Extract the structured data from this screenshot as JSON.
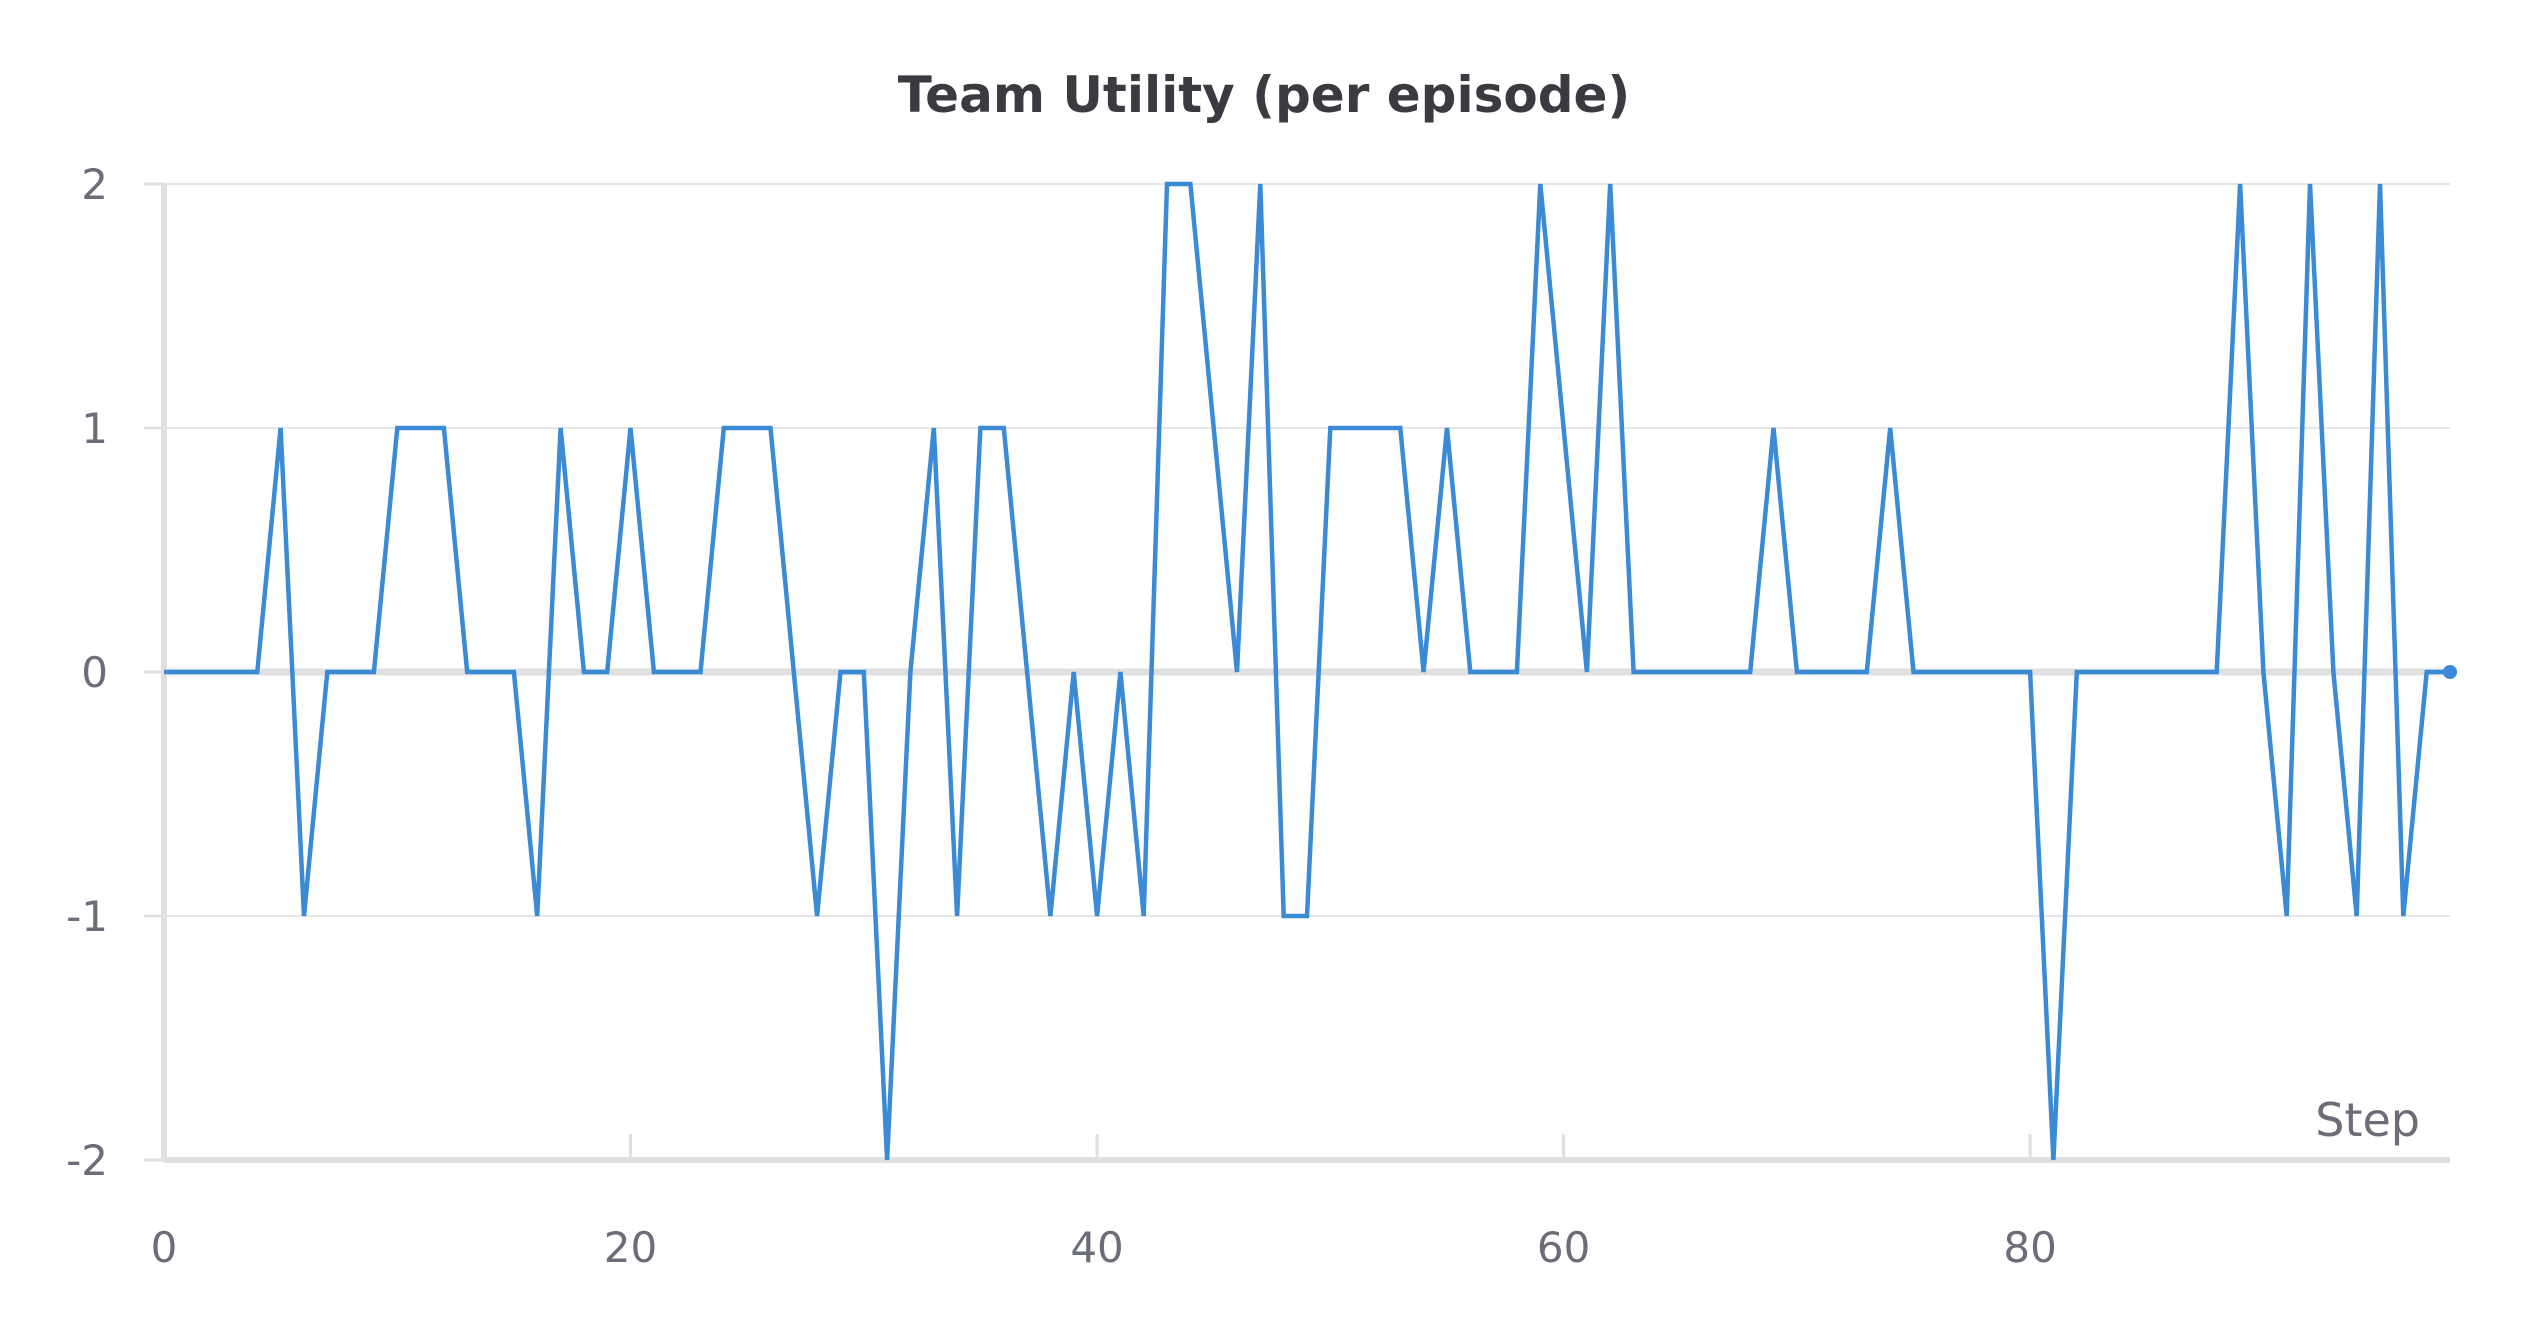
{
  "chart_data": {
    "type": "line",
    "title": "Team Utility (per episode)",
    "xlabel": "Step",
    "ylabel": "",
    "xlim": [
      0,
      98
    ],
    "ylim": [
      -2,
      2
    ],
    "x_ticks": [
      "0",
      "20",
      "40",
      "60",
      "80"
    ],
    "x_tick_values": [
      0,
      20,
      40,
      60,
      80
    ],
    "y_ticks": [
      "2",
      "1",
      "0",
      "-1",
      "-2"
    ],
    "y_tick_values": [
      2,
      1,
      0,
      -1,
      -2
    ],
    "grid": true,
    "legend": "none",
    "series": [
      {
        "color": "#3a8ad6",
        "x": [
          0,
          1,
          2,
          3,
          4,
          5,
          6,
          7,
          8,
          9,
          10,
          11,
          12,
          13,
          14,
          15,
          16,
          17,
          18,
          19,
          20,
          21,
          22,
          23,
          24,
          25,
          26,
          27,
          28,
          29,
          30,
          31,
          32,
          33,
          34,
          35,
          36,
          37,
          38,
          39,
          40,
          41,
          42,
          43,
          44,
          45,
          46,
          47,
          48,
          49,
          50,
          51,
          52,
          53,
          54,
          55,
          56,
          57,
          58,
          59,
          60,
          61,
          62,
          63,
          64,
          65,
          66,
          67,
          68,
          69,
          70,
          71,
          72,
          73,
          74,
          75,
          76,
          77,
          78,
          79,
          80,
          81,
          82,
          83,
          84,
          85,
          86,
          87,
          88,
          89,
          90,
          91,
          92,
          93,
          94,
          95,
          96,
          97,
          98
        ],
        "values": [
          0,
          0,
          0,
          0,
          0,
          1,
          -1,
          0,
          0,
          0,
          1,
          1,
          1,
          0,
          0,
          0,
          -1,
          1,
          0,
          0,
          1,
          0,
          0,
          0,
          1,
          1,
          1,
          0,
          -1,
          0,
          0,
          -2,
          0,
          1,
          -1,
          1,
          1,
          0,
          -1,
          0,
          -1,
          0,
          -1,
          2,
          2,
          1,
          0,
          2,
          -1,
          -1,
          1,
          1,
          1,
          1,
          0,
          1,
          0,
          0,
          0,
          2,
          1,
          0,
          2,
          0,
          0,
          0,
          0,
          0,
          0,
          1,
          0,
          0,
          0,
          0,
          1,
          0,
          0,
          0,
          0,
          0,
          0,
          -2,
          0,
          0,
          0,
          0,
          0,
          0,
          0,
          2,
          0,
          -1,
          2,
          0,
          -1,
          2,
          -1,
          0,
          0
        ]
      }
    ]
  }
}
